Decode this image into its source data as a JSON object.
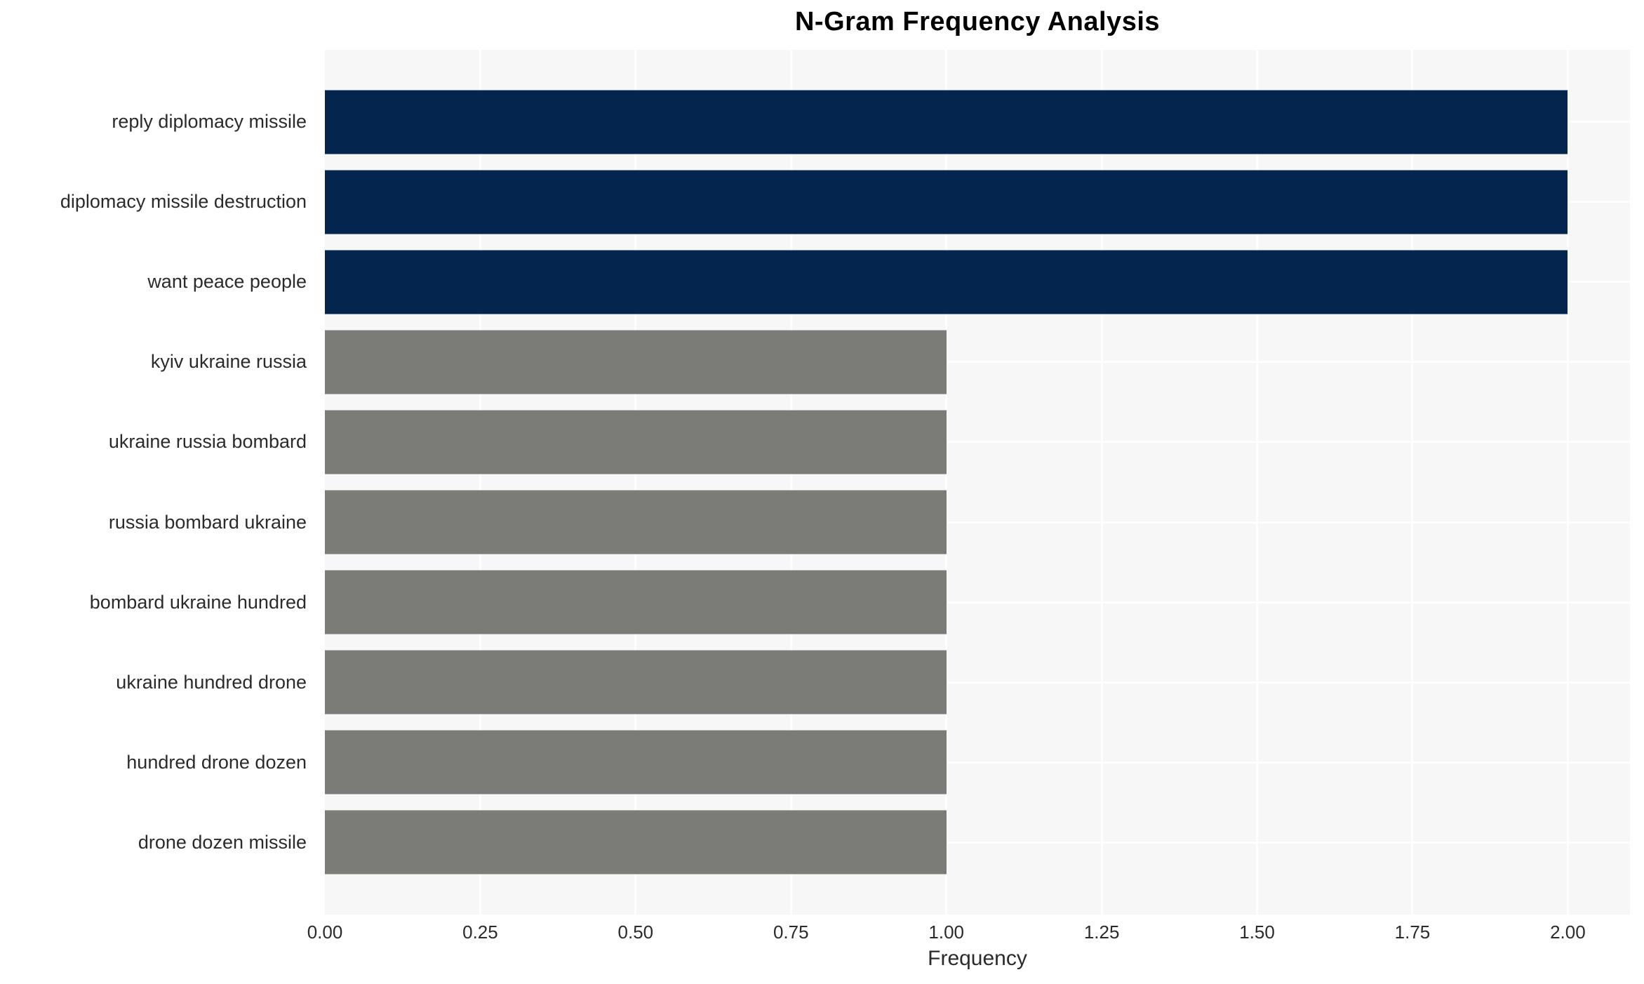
{
  "figure": {
    "background_color": "#ffffff"
  },
  "chart_data": {
    "type": "bar",
    "orientation": "horizontal",
    "title": "N-Gram Frequency Analysis",
    "xlabel": "Frequency",
    "ylabel": "",
    "categories": [
      "reply diplomacy missile",
      "diplomacy missile destruction",
      "want peace people",
      "kyiv ukraine russia",
      "ukraine russia bombard",
      "russia bombard ukraine",
      "bombard ukraine hundred",
      "ukraine hundred drone",
      "hundred drone dozen",
      "drone dozen missile"
    ],
    "values": [
      2,
      2,
      2,
      1,
      1,
      1,
      1,
      1,
      1,
      1
    ],
    "bar_colors": [
      "#03254e",
      "#03254e",
      "#03254e",
      "#7b7b77",
      "#7b7b77",
      "#7b7b77",
      "#7b7b77",
      "#7b7b77",
      "#7b7b77",
      "#7b7b77"
    ],
    "x_ticks": [
      0,
      0.25,
      0.5,
      0.75,
      1,
      1.25,
      1.5,
      1.75,
      2
    ],
    "x_tick_labels": [
      "0.00",
      "0.25",
      "0.50",
      "0.75",
      "1.00",
      "1.25",
      "1.50",
      "1.75",
      "2.00"
    ],
    "xlim": [
      0,
      2.1
    ],
    "grid": true,
    "legend_position": "none",
    "style": {
      "highlight_color": "#03254e",
      "base_color": "#7b7b77",
      "plot_background": "#f7f7f7",
      "grid_color": "#ffffff",
      "text_color": "#2b2b2b",
      "title_color": "#000000"
    }
  }
}
